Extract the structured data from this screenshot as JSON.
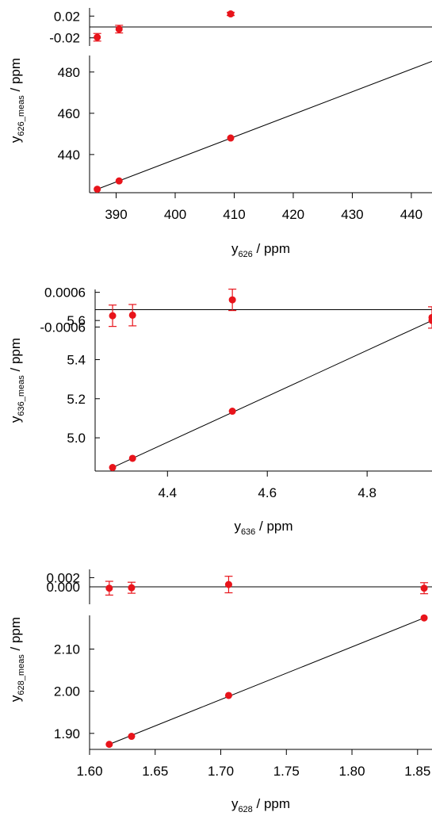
{
  "colors": {
    "marker": "#e8141b",
    "line": "#000000",
    "axis": "#000000"
  },
  "chart_data": [
    {
      "type": "scatter",
      "fit": "line",
      "xlabel": {
        "main": "y",
        "sub": "626",
        "tail": " / ppm"
      },
      "ylabel": {
        "main": "y",
        "sub": "626_meas",
        "tail": " / ppm"
      },
      "xlim": [
        385.5,
        443.5
      ],
      "main_ylim": [
        421.5,
        488
      ],
      "resid_ylim": [
        -0.035,
        0.035
      ],
      "x_ticks": [
        390,
        400,
        410,
        420,
        430,
        440
      ],
      "x_tick_labels": [
        "390",
        "400",
        "410",
        "420",
        "430",
        "440"
      ],
      "y_ticks": [
        440,
        460,
        480
      ],
      "y_tick_labels": [
        "440",
        "460",
        "480"
      ],
      "resid_ticks": [
        0.02,
        -0.02
      ],
      "resid_tick_labels": [
        "0.02",
        "-0.02"
      ],
      "x": [
        386.8,
        390.5,
        409.4
      ],
      "y": [
        423.2,
        427.2,
        448.0
      ],
      "fit_x": [
        386.8,
        443.5
      ],
      "fit_y": [
        423.2,
        485.2
      ],
      "residuals": [
        -0.019,
        -0.004,
        0.024
      ],
      "residual_errors": [
        0.007,
        0.007,
        0.003
      ]
    },
    {
      "type": "scatter",
      "fit": "line",
      "xlabel": {
        "main": "y",
        "sub": "636",
        "tail": "  / ppm"
      },
      "ylabel": {
        "main": "y",
        "sub": "636_meas",
        "tail": " / ppm"
      },
      "xlim": [
        4.255,
        4.93
      ],
      "main_ylim": [
        4.83,
        5.625
      ],
      "resid_ylim": [
        -0.0007,
        0.0007
      ],
      "x_ticks": [
        4.4,
        4.6,
        4.8
      ],
      "x_tick_labels": [
        "4.4",
        "4.6",
        "4.8"
      ],
      "y_ticks": [
        5.0,
        5.2,
        5.4,
        5.6
      ],
      "y_tick_labels": [
        "5.0",
        "5.2",
        "5.4",
        "5.6"
      ],
      "resid_ticks": [
        0.0006,
        -0.0006
      ],
      "resid_tick_labels": [
        "0.0006",
        "-0.0006"
      ],
      "x": [
        4.29,
        4.33,
        4.53,
        4.93
      ],
      "y": [
        4.848,
        4.895,
        5.136,
        5.6
      ],
      "fit_x": [
        4.29,
        4.93
      ],
      "fit_y": [
        4.848,
        5.6
      ],
      "residuals": [
        -0.00021,
        -0.00019,
        0.00034,
        -0.00027
      ],
      "residual_errors": [
        0.00037,
        0.00037,
        0.00037,
        0.00037
      ]
    },
    {
      "type": "scatter",
      "fit": "line",
      "xlabel": {
        "main": "y",
        "sub": "628",
        "tail": " / ppm"
      },
      "ylabel": {
        "main": "y",
        "sub": "628_meas",
        "tail": " / ppm"
      },
      "xlim": [
        1.6,
        1.861
      ],
      "main_ylim": [
        1.862,
        2.18
      ],
      "resid_ylim": [
        -0.0038,
        0.0038
      ],
      "x_ticks": [
        1.6,
        1.65,
        1.7,
        1.75,
        1.8,
        1.85
      ],
      "x_tick_labels": [
        "1.60",
        "1.65",
        "1.70",
        "1.75",
        "1.80",
        "1.85"
      ],
      "y_ticks": [
        1.9,
        2.0,
        2.1
      ],
      "y_tick_labels": [
        "1.90",
        "2.00",
        "2.10"
      ],
      "resid_ticks": [
        0.002,
        0.0
      ],
      "resid_tick_labels": [
        "0.002",
        "0.000"
      ],
      "x": [
        1.615,
        1.632,
        1.706,
        1.855
      ],
      "y": [
        1.874,
        1.893,
        1.99,
        2.174
      ],
      "fit_x": [
        1.615,
        1.855
      ],
      "fit_y": [
        1.874,
        2.174
      ],
      "residuals": [
        -0.0003,
        -0.0002,
        0.0005,
        -0.0003
      ],
      "residual_errors": [
        0.0015,
        0.0012,
        0.0018,
        0.0012
      ]
    }
  ]
}
